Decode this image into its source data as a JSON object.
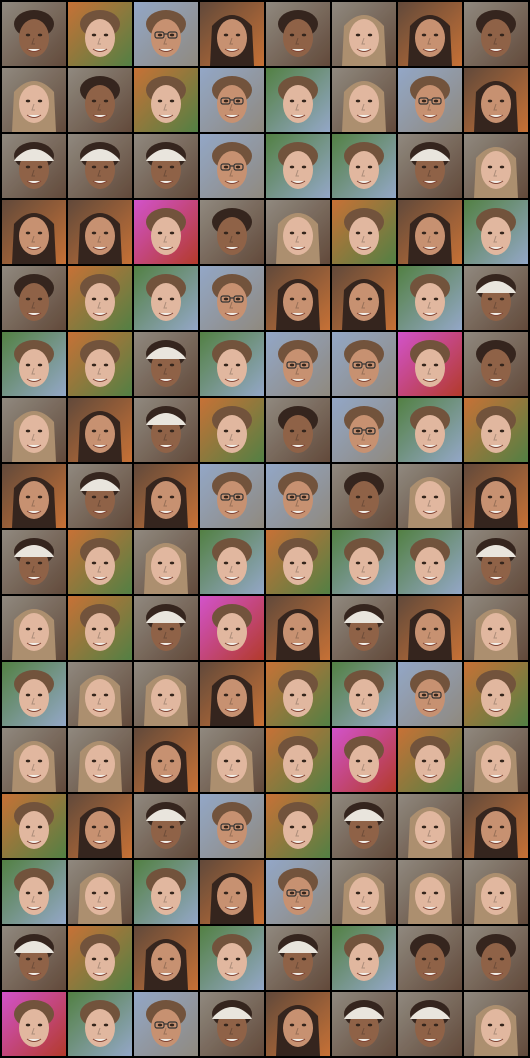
{
  "grid": {
    "rows": 16,
    "cols": 8,
    "background": "#000000"
  },
  "palette": {
    "skin_light": "#e0b49a",
    "skin_mid": "#c48c6a",
    "skin_dark": "#8a5a3e",
    "hair_dark": "#2b1a12",
    "hair_brown": "#6b4a32",
    "hair_blond": "#a88a68",
    "cap_white": "#e8e4dc",
    "bg_grey": "#8a8378",
    "bg_brown": "#5a4030",
    "bg_blue": "#8ea3c4",
    "bg_orange": "#c46a2c",
    "bg_green": "#4a7a3a",
    "bg_magenta": "#d04ac8",
    "bg_red": "#b03020",
    "bg_yellow": "#d8b840",
    "glasses": "#2a2a2a"
  },
  "tiles": [
    {
      "kind": "smile-dark"
    },
    {
      "kind": "pale-blurry"
    },
    {
      "kind": "glasses-smile"
    },
    {
      "kind": "long-dark-hair"
    },
    {
      "kind": "smile-dark"
    },
    {
      "kind": "young-woman"
    },
    {
      "kind": "long-dark-hair"
    },
    {
      "kind": "smile-dark"
    },
    {
      "kind": "young-woman"
    },
    {
      "kind": "smile-dark"
    },
    {
      "kind": "pale-blurry"
    },
    {
      "kind": "glasses-smile"
    },
    {
      "kind": "child-distorted"
    },
    {
      "kind": "young-woman"
    },
    {
      "kind": "glasses-smile"
    },
    {
      "kind": "long-dark-hair"
    },
    {
      "kind": "cap-man"
    },
    {
      "kind": "cap-man"
    },
    {
      "kind": "cap-man"
    },
    {
      "kind": "glasses-smile"
    },
    {
      "kind": "child-distorted"
    },
    {
      "kind": "child-distorted"
    },
    {
      "kind": "cap-man"
    },
    {
      "kind": "young-woman"
    },
    {
      "kind": "long-dark-hair"
    },
    {
      "kind": "long-dark-hair"
    },
    {
      "kind": "magenta-child"
    },
    {
      "kind": "smile-dark"
    },
    {
      "kind": "young-woman"
    },
    {
      "kind": "pale-blurry"
    },
    {
      "kind": "long-dark-hair"
    },
    {
      "kind": "child-distorted"
    },
    {
      "kind": "smile-dark"
    },
    {
      "kind": "pale-blurry"
    },
    {
      "kind": "child-distorted"
    },
    {
      "kind": "glasses-smile"
    },
    {
      "kind": "long-dark-hair"
    },
    {
      "kind": "long-dark-hair"
    },
    {
      "kind": "child-distorted"
    },
    {
      "kind": "cap-man"
    },
    {
      "kind": "child-distorted"
    },
    {
      "kind": "pale-blurry"
    },
    {
      "kind": "cap-man"
    },
    {
      "kind": "child-distorted"
    },
    {
      "kind": "glasses-smile"
    },
    {
      "kind": "glasses-smile"
    },
    {
      "kind": "magenta-child"
    },
    {
      "kind": "smile-dark"
    },
    {
      "kind": "young-woman"
    },
    {
      "kind": "long-dark-hair"
    },
    {
      "kind": "cap-man"
    },
    {
      "kind": "pale-blurry"
    },
    {
      "kind": "smile-dark"
    },
    {
      "kind": "glasses-smile"
    },
    {
      "kind": "child-distorted"
    },
    {
      "kind": "pale-blurry"
    },
    {
      "kind": "long-dark-hair"
    },
    {
      "kind": "cap-man"
    },
    {
      "kind": "long-dark-hair"
    },
    {
      "kind": "glasses-smile"
    },
    {
      "kind": "glasses-smile"
    },
    {
      "kind": "smile-dark"
    },
    {
      "kind": "young-woman"
    },
    {
      "kind": "long-dark-hair"
    },
    {
      "kind": "cap-man"
    },
    {
      "kind": "pale-blurry"
    },
    {
      "kind": "young-woman"
    },
    {
      "kind": "child-distorted"
    },
    {
      "kind": "pale-blurry"
    },
    {
      "kind": "child-distorted"
    },
    {
      "kind": "child-distorted"
    },
    {
      "kind": "cap-man"
    },
    {
      "kind": "young-woman"
    },
    {
      "kind": "pale-blurry"
    },
    {
      "kind": "cap-man"
    },
    {
      "kind": "magenta-child"
    },
    {
      "kind": "long-dark-hair"
    },
    {
      "kind": "cap-man"
    },
    {
      "kind": "long-dark-hair"
    },
    {
      "kind": "young-woman"
    },
    {
      "kind": "child-distorted"
    },
    {
      "kind": "young-woman"
    },
    {
      "kind": "young-woman"
    },
    {
      "kind": "long-dark-hair"
    },
    {
      "kind": "pale-blurry"
    },
    {
      "kind": "child-distorted"
    },
    {
      "kind": "glasses-smile"
    },
    {
      "kind": "pale-blurry"
    },
    {
      "kind": "young-woman"
    },
    {
      "kind": "young-woman"
    },
    {
      "kind": "long-dark-hair"
    },
    {
      "kind": "young-woman"
    },
    {
      "kind": "pale-blurry"
    },
    {
      "kind": "magenta-child"
    },
    {
      "kind": "pale-blurry"
    },
    {
      "kind": "young-woman"
    },
    {
      "kind": "pale-blurry"
    },
    {
      "kind": "long-dark-hair"
    },
    {
      "kind": "cap-man"
    },
    {
      "kind": "glasses-smile"
    },
    {
      "kind": "pale-blurry"
    },
    {
      "kind": "cap-man"
    },
    {
      "kind": "young-woman"
    },
    {
      "kind": "long-dark-hair"
    },
    {
      "kind": "child-distorted"
    },
    {
      "kind": "young-woman"
    },
    {
      "kind": "child-distorted"
    },
    {
      "kind": "long-dark-hair"
    },
    {
      "kind": "glasses-smile"
    },
    {
      "kind": "young-woman"
    },
    {
      "kind": "young-woman"
    },
    {
      "kind": "young-woman"
    },
    {
      "kind": "cap-man"
    },
    {
      "kind": "pale-blurry"
    },
    {
      "kind": "long-dark-hair"
    },
    {
      "kind": "child-distorted"
    },
    {
      "kind": "cap-man"
    },
    {
      "kind": "child-distorted"
    },
    {
      "kind": "smile-dark"
    },
    {
      "kind": "smile-dark"
    },
    {
      "kind": "magenta-child"
    },
    {
      "kind": "child-distorted"
    },
    {
      "kind": "glasses-smile"
    },
    {
      "kind": "cap-man"
    },
    {
      "kind": "long-dark-hair"
    },
    {
      "kind": "cap-man"
    },
    {
      "kind": "cap-man"
    },
    {
      "kind": "young-woman"
    }
  ]
}
